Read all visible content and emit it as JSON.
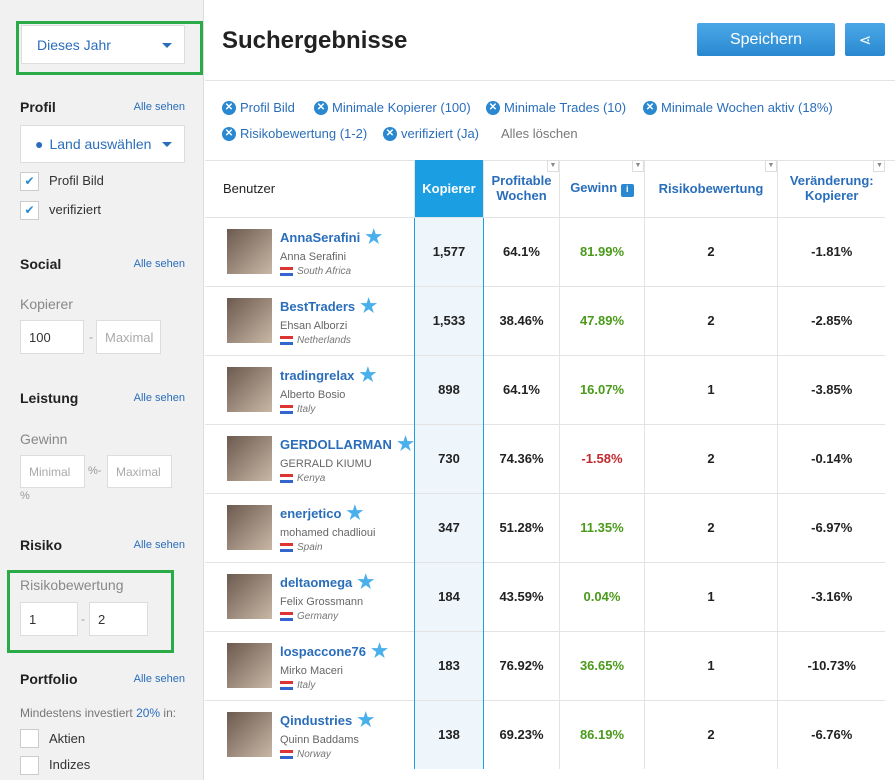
{
  "sidebar": {
    "period": "Dieses Jahr",
    "profil": {
      "title": "Profil",
      "see_all": "Alle sehen",
      "country": "Land auswählen",
      "checkboxes": [
        {
          "label": "Profil Bild",
          "checked": true
        },
        {
          "label": "verifiziert",
          "checked": true
        }
      ]
    },
    "social": {
      "title": "Social",
      "see_all": "Alle sehen",
      "label": "Kopierer",
      "min": "100",
      "max_placeholder": "Maximal",
      "sep": "-"
    },
    "leistung": {
      "title": "Leistung",
      "see_all": "Alle sehen",
      "label": "Gewinn",
      "min_placeholder": "Minimal",
      "sep": "%-",
      "max_placeholder": "Maximal",
      "unit": "%"
    },
    "risiko": {
      "title": "Risiko",
      "see_all": "Alle sehen",
      "label": "Risikobewertung",
      "min": "1",
      "sep": "-",
      "max": "2"
    },
    "portfolio": {
      "title": "Portfolio",
      "see_all": "Alle sehen",
      "text_pre": "Mindestens investiert ",
      "pct": "20%",
      "text_post": " in:",
      "checkboxes": [
        {
          "label": "Aktien",
          "checked": false
        },
        {
          "label": "Indizes",
          "checked": false
        }
      ]
    }
  },
  "header": {
    "title": "Suchergebnisse",
    "save": "Speichern",
    "share_icon": "share-icon"
  },
  "filters": [
    "Profil Bild",
    "Minimale Kopierer (100)",
    "Minimale Trades (10)",
    "Minimale Wochen aktiv (18%)",
    "Risikobewertung (1-2)",
    "verifiziert (Ja)"
  ],
  "clear_all": "Alles löschen",
  "table": {
    "columns": [
      "Benutzer",
      "Kopierer",
      "Profitable Wochen",
      "Gewinn",
      "Risikobewertung",
      "Veränderung: Kopierer"
    ],
    "rows": [
      {
        "user": "AnnaSerafini",
        "name": "Anna Serafini",
        "country": "South Africa",
        "copiers": "1,577",
        "weeks": "64.1%",
        "gain": "81.99%",
        "risk": "2",
        "change": "-1.81%"
      },
      {
        "user": "BestTraders",
        "name": "Ehsan Alborzi",
        "country": "Netherlands",
        "copiers": "1,533",
        "weeks": "38.46%",
        "gain": "47.89%",
        "risk": "2",
        "change": "-2.85%"
      },
      {
        "user": "tradingrelax",
        "name": "Alberto Bosio",
        "country": "Italy",
        "copiers": "898",
        "weeks": "64.1%",
        "gain": "16.07%",
        "risk": "1",
        "change": "-3.85%"
      },
      {
        "user": "GERDOLLARMAN",
        "name": "GERRALD KIUMU",
        "country": "Kenya",
        "copiers": "730",
        "weeks": "74.36%",
        "gain": "-1.58%",
        "risk": "2",
        "change": "-0.14%"
      },
      {
        "user": "enerjetico",
        "name": "mohamed chadlioui",
        "country": "Spain",
        "copiers": "347",
        "weeks": "51.28%",
        "gain": "11.35%",
        "risk": "2",
        "change": "-6.97%"
      },
      {
        "user": "deltaomega",
        "name": "Felix Grossmann",
        "country": "Germany",
        "copiers": "184",
        "weeks": "43.59%",
        "gain": "0.04%",
        "risk": "1",
        "change": "-3.16%"
      },
      {
        "user": "lospaccone76",
        "name": "Mirko Maceri",
        "country": "Italy",
        "copiers": "183",
        "weeks": "76.92%",
        "gain": "36.65%",
        "risk": "1",
        "change": "-10.73%"
      },
      {
        "user": "Qindustries",
        "name": "Quinn Baddams",
        "country": "Norway",
        "copiers": "138",
        "weeks": "69.23%",
        "gain": "86.19%",
        "risk": "2",
        "change": "-6.76%"
      }
    ]
  },
  "colors": {
    "accent": "#1b9ee2",
    "highlight": "#2bab48",
    "positive": "#4a9a1a",
    "negative": "#c0282f"
  }
}
